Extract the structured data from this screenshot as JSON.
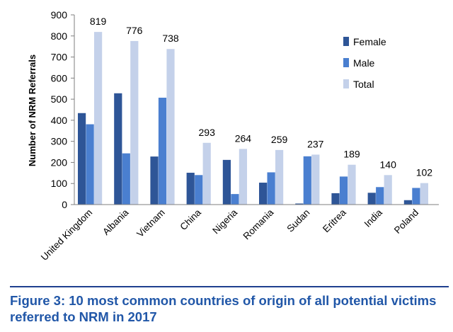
{
  "chart_data": {
    "type": "bar",
    "ylabel": "Number of NRM Referrals",
    "xlabel": "",
    "ylim": [
      0,
      900
    ],
    "yticks": [
      0,
      100,
      200,
      300,
      400,
      500,
      600,
      700,
      800,
      900
    ],
    "grid": false,
    "legend_position": "top-right",
    "categories": [
      "United Kingdom",
      "Albania",
      "Vietnam",
      "China",
      "Nigeria",
      "Romania",
      "Sudan",
      "Eritrea",
      "India",
      "Poland"
    ],
    "series": [
      {
        "name": "Female",
        "color": "#2e5597",
        "values": [
          434,
          528,
          228,
          151,
          212,
          104,
          5,
          54,
          56,
          21
        ]
      },
      {
        "name": "Male",
        "color": "#4a7fd0",
        "values": [
          381,
          243,
          507,
          140,
          50,
          153,
          229,
          133,
          83,
          79
        ]
      },
      {
        "name": "Total",
        "color": "#c4d1ea",
        "values": [
          819,
          776,
          738,
          293,
          264,
          259,
          237,
          189,
          140,
          102
        ]
      }
    ],
    "total_labels": [
      "819",
      "776",
      "738",
      "293",
      "264",
      "259",
      "237",
      "189",
      "140",
      "102"
    ]
  },
  "caption": "Figure 3: 10 most common countries of origin of all potential victims referred to NRM in 2017"
}
